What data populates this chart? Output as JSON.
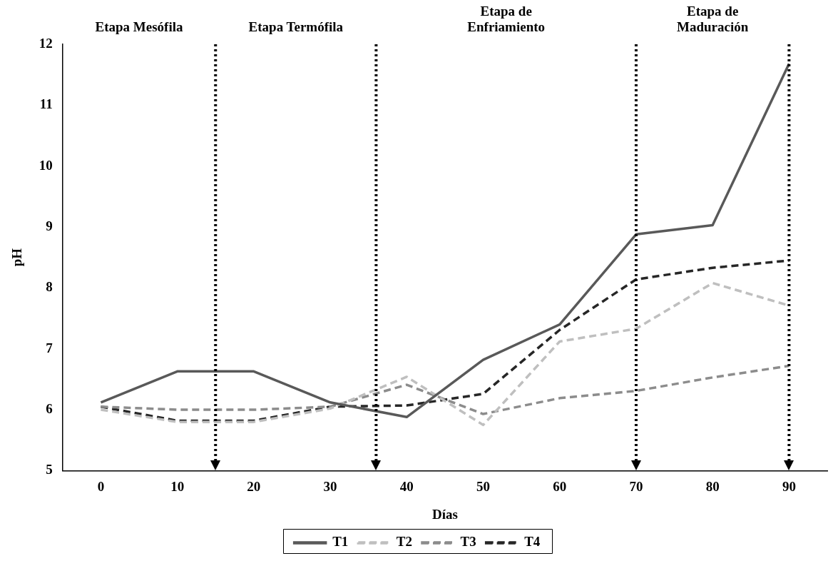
{
  "chart_data": {
    "type": "line",
    "xlabel": "Días",
    "ylabel": "pH",
    "x": [
      0,
      10,
      20,
      30,
      40,
      50,
      60,
      70,
      80,
      90
    ],
    "xlim": [
      -5,
      95
    ],
    "xticks": [
      0,
      10,
      20,
      30,
      40,
      50,
      60,
      70,
      80,
      90
    ],
    "ylim": [
      5,
      12
    ],
    "yticks": [
      5,
      6,
      7,
      8,
      9,
      10,
      11,
      12
    ],
    "grid": false,
    "legend": "bottom",
    "marker": "none",
    "series": [
      {
        "name": "T1",
        "color": "#595959",
        "line_style": "solid",
        "values": [
          6.12,
          6.63,
          6.63,
          6.12,
          5.88,
          6.82,
          7.4,
          8.88,
          9.03,
          11.68
        ]
      },
      {
        "name": "T2",
        "color": "#bfbfbf",
        "line_style": "dashed",
        "values": [
          6.0,
          5.8,
          5.8,
          6.02,
          6.54,
          5.75,
          7.12,
          7.33,
          8.08,
          7.71
        ]
      },
      {
        "name": "T3",
        "color": "#8c8c8c",
        "line_style": "dashed",
        "values": [
          6.05,
          6.0,
          6.0,
          6.05,
          6.41,
          5.93,
          6.19,
          6.31,
          6.53,
          6.72
        ]
      },
      {
        "name": "T4",
        "color": "#262626",
        "line_style": "dashed",
        "values": [
          6.05,
          5.82,
          5.82,
          6.05,
          6.07,
          6.26,
          7.31,
          8.14,
          8.33,
          8.45
        ]
      }
    ],
    "ref_lines": [
      {
        "axis": "x",
        "value": 15,
        "color": "#000000",
        "line_style": "dotted"
      },
      {
        "axis": "x",
        "value": 36,
        "color": "#000000",
        "line_style": "dotted"
      },
      {
        "axis": "x",
        "value": 70,
        "color": "#000000",
        "line_style": "dotted"
      },
      {
        "axis": "x",
        "value": 90,
        "color": "#000000",
        "line_style": "dotted"
      }
    ],
    "annotations": [
      "Etapa Mesófila",
      "Etapa Termófila",
      "Etapa de Enfriamiento",
      "Etapa de Maduración"
    ]
  }
}
